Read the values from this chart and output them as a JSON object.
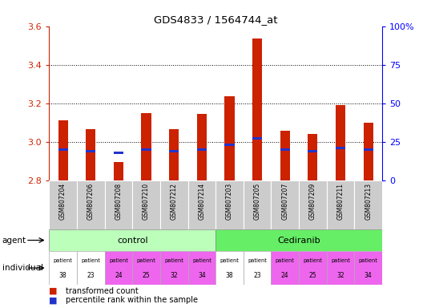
{
  "title": "GDS4833 / 1564744_at",
  "samples": [
    "GSM807204",
    "GSM807206",
    "GSM807208",
    "GSM807210",
    "GSM807212",
    "GSM807214",
    "GSM807203",
    "GSM807205",
    "GSM807207",
    "GSM807209",
    "GSM807211",
    "GSM807213"
  ],
  "transformed_count": [
    3.11,
    3.065,
    2.895,
    3.15,
    3.065,
    3.145,
    3.235,
    3.535,
    3.055,
    3.04,
    3.19,
    3.1
  ],
  "percentile_rank_pct": [
    20,
    19,
    18,
    20,
    19,
    20,
    23,
    27,
    20,
    19,
    21,
    20
  ],
  "ymin": 2.8,
  "ymax": 3.6,
  "yticks": [
    2.8,
    3.0,
    3.2,
    3.4,
    3.6
  ],
  "y2ticks": [
    0,
    25,
    50,
    75,
    100
  ],
  "bar_width": 0.35,
  "red_color": "#cc2200",
  "blue_color": "#2233cc",
  "control_bg": "#bbffbb",
  "cediranib_bg": "#66ee66",
  "patient_colors": [
    "#ffffff",
    "#ffffff",
    "#ee66ee",
    "#ee66ee",
    "#ee66ee",
    "#ee66ee",
    "#ffffff",
    "#ffffff",
    "#ee66ee",
    "#ee66ee",
    "#ee66ee",
    "#ee66ee"
  ],
  "patient_numbers": [
    38,
    23,
    24,
    25,
    32,
    34,
    38,
    23,
    24,
    25,
    32,
    34
  ],
  "sample_bg": "#cccccc",
  "n_control": 6,
  "n_cediranib": 6
}
